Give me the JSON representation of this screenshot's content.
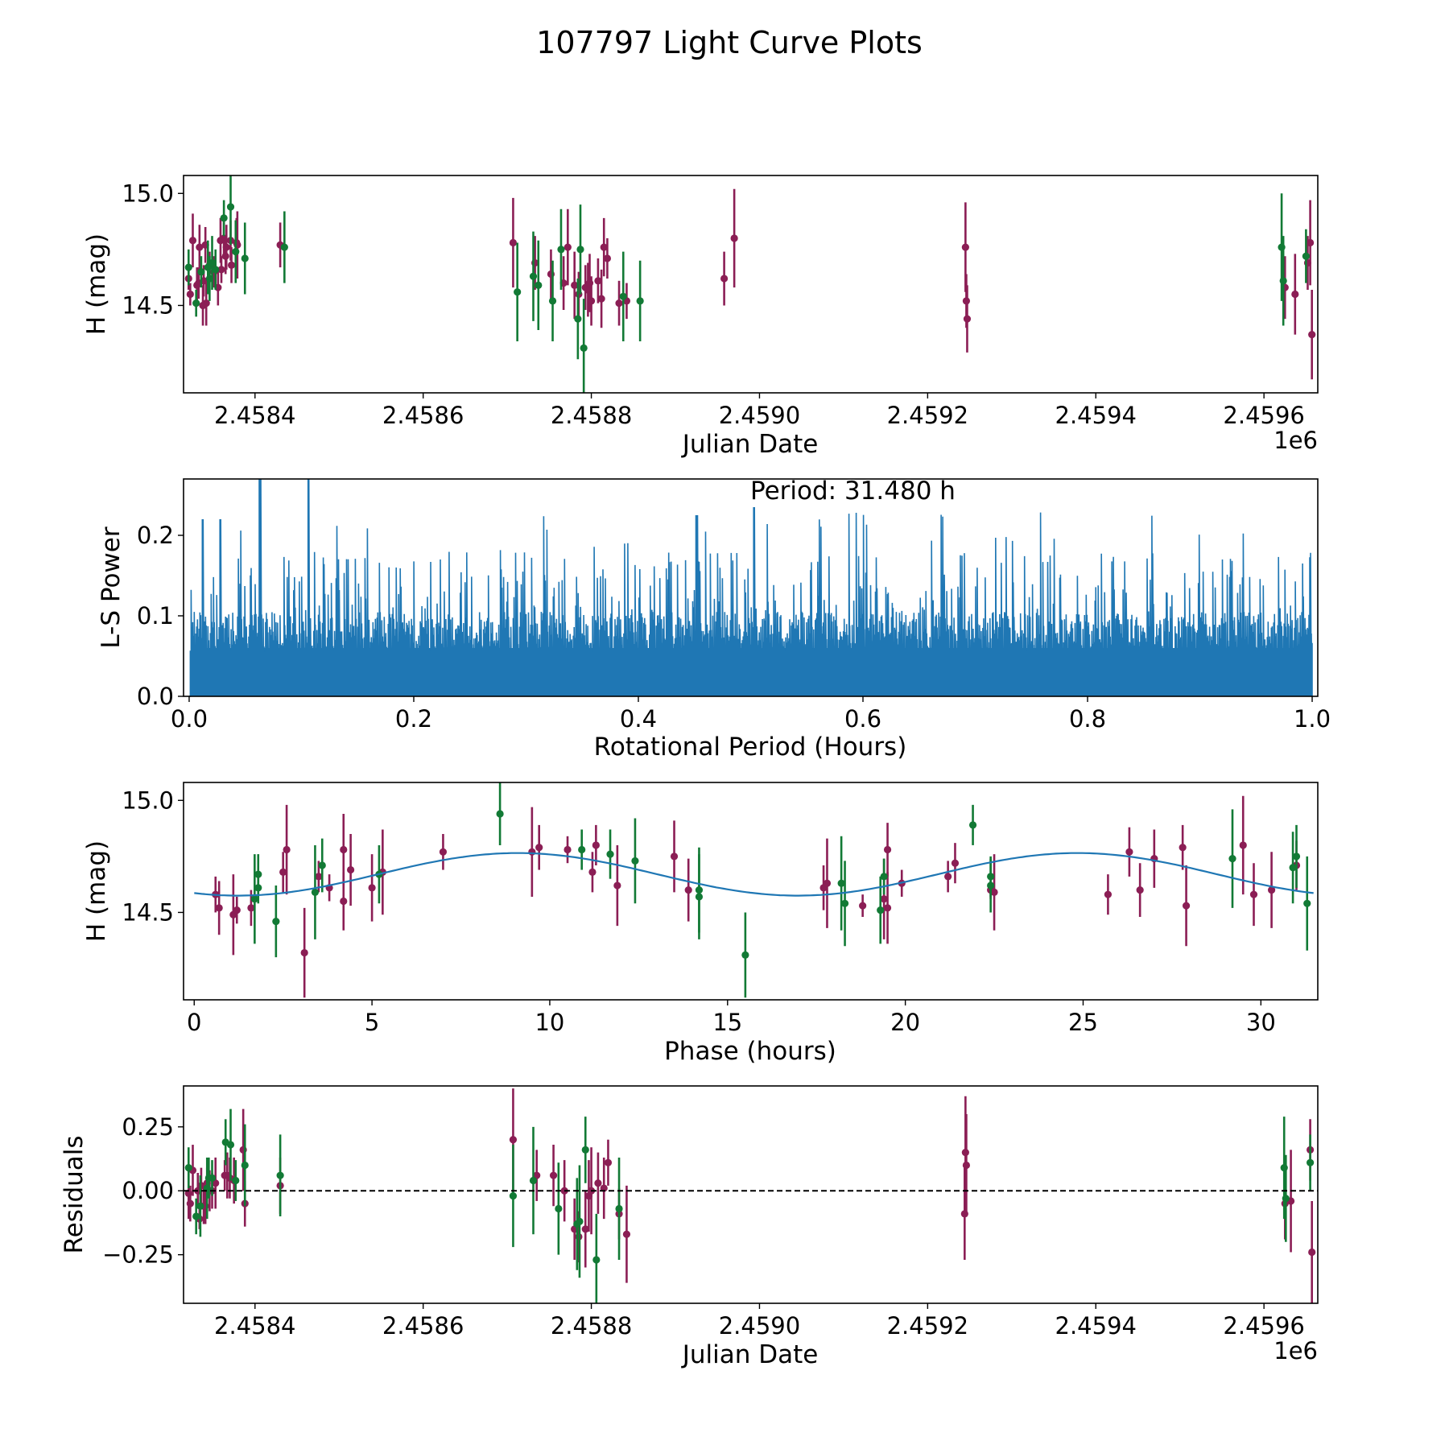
{
  "figure_title": "107797 Light Curve Plots",
  "colors": {
    "filter_a": "#8b1e55",
    "filter_b": "#127a35",
    "periodogram": "#1f77b4",
    "model": "#1f77b4",
    "zero_line": "#000000"
  },
  "chart_data": [
    {
      "type": "scatter",
      "panel": "light-curve",
      "title": "",
      "xlabel": "Julian Date",
      "ylabel": "H (mag)",
      "x_offset_label": "1e6",
      "xlim": [
        2458315,
        2459664
      ],
      "ylim": [
        14.11,
        15.08
      ],
      "xticks": [
        2458400,
        2458600,
        2458800,
        2459000,
        2459200,
        2459400,
        2459600
      ],
      "xtick_labels": [
        "2.4584",
        "2.4586",
        "2.4588",
        "2.4590",
        "2.4592",
        "2.4594",
        "2.4596"
      ],
      "yticks": [
        14.5,
        15.0
      ],
      "ytick_labels": [
        "14.5",
        "15.0"
      ],
      "series": [
        {
          "name": "filter-magenta",
          "color": "#8b1e55",
          "x": [
            2458321,
            2458323,
            2458326,
            2458331,
            2458333,
            2458334,
            2458338,
            2458339,
            2458341,
            2458342,
            2458346,
            2458351,
            2458356,
            2458359,
            2458360,
            2458363,
            2458365,
            2458366,
            2458371,
            2458372,
            2458378,
            2458379,
            2458430,
            2458707,
            2458733,
            2458752,
            2458767,
            2458772,
            2458780,
            2458785,
            2458793,
            2458796,
            2458798,
            2458800,
            2458808,
            2458812,
            2458815,
            2458819,
            2458833,
            2458842,
            2458958,
            2458970,
            2459245,
            2459246,
            2459247,
            2459625,
            2459637,
            2459652,
            2459655,
            2459657
          ],
          "y": [
            14.62,
            14.55,
            14.79,
            14.59,
            14.6,
            14.76,
            14.5,
            14.61,
            14.77,
            14.51,
            14.68,
            14.65,
            14.58,
            14.79,
            14.66,
            14.8,
            14.72,
            14.76,
            14.79,
            14.68,
            14.78,
            14.77,
            14.77,
            14.78,
            14.69,
            14.64,
            14.6,
            14.76,
            14.59,
            14.55,
            14.58,
            14.57,
            14.6,
            14.52,
            14.61,
            14.53,
            14.76,
            14.71,
            14.51,
            14.52,
            14.62,
            14.8,
            14.76,
            14.52,
            14.44,
            14.58,
            14.55,
            14.69,
            14.78,
            14.37
          ],
          "err": [
            0.05,
            0.05,
            0.12,
            0.08,
            0.07,
            0.1,
            0.09,
            0.07,
            0.08,
            0.1,
            0.06,
            0.07,
            0.08,
            0.1,
            0.06,
            0.09,
            0.08,
            0.1,
            0.09,
            0.08,
            0.11,
            0.15,
            0.1,
            0.2,
            0.12,
            0.11,
            0.12,
            0.17,
            0.15,
            0.1,
            0.1,
            0.12,
            0.13,
            0.11,
            0.1,
            0.13,
            0.13,
            0.09,
            0.1,
            0.08,
            0.12,
            0.22,
            0.2,
            0.12,
            0.15,
            0.14,
            0.18,
            0.12,
            0.19,
            0.2
          ],
          "note": "values estimated from pixel positions"
        },
        {
          "name": "filter-green",
          "color": "#127a35",
          "x": [
            2458321,
            2458330,
            2458336,
            2458344,
            2458346,
            2458349,
            2458353,
            2458363,
            2458371,
            2458377,
            2458388,
            2458435,
            2458712,
            2458731,
            2458737,
            2458754,
            2458764,
            2458784,
            2458787,
            2458791,
            2458838,
            2458858,
            2459621,
            2459623,
            2459650
          ],
          "y": [
            14.67,
            14.51,
            14.65,
            14.67,
            14.62,
            14.69,
            14.66,
            14.89,
            14.94,
            14.74,
            14.71,
            14.76,
            14.56,
            14.63,
            14.59,
            14.52,
            14.75,
            14.44,
            14.75,
            14.31,
            14.54,
            14.52,
            14.76,
            14.61,
            14.72
          ],
          "err": [
            0.08,
            0.06,
            0.07,
            0.12,
            0.1,
            0.12,
            0.09,
            0.08,
            0.17,
            0.14,
            0.16,
            0.16,
            0.22,
            0.2,
            0.2,
            0.18,
            0.18,
            0.18,
            0.2,
            0.22,
            0.2,
            0.18,
            0.24,
            0.2,
            0.12
          ],
          "note": "values estimated from pixel positions"
        }
      ]
    },
    {
      "type": "line",
      "panel": "periodogram",
      "xlabel": "Rotational Period (Hours)",
      "ylabel": "L-S Power",
      "xlim": [
        -0.005,
        1.005
      ],
      "ylim": [
        0.0,
        0.27
      ],
      "xticks": [
        0.0,
        0.2,
        0.4,
        0.6,
        0.8,
        1.0
      ],
      "xtick_labels": [
        "0.0",
        "0.2",
        "0.4",
        "0.6",
        "0.8",
        "1.0"
      ],
      "yticks": [
        0.0,
        0.1,
        0.2
      ],
      "ytick_labels": [
        "0.0",
        "0.1",
        "0.2"
      ],
      "annotation": "Period: 31.480 h",
      "series": [
        {
          "name": "ls-power",
          "color": "#1f77b4",
          "description": "dense periodogram, baseline envelope ~0.06-0.12 with frequent spikes to ~0.15-0.24",
          "peaks": [
            [
              0.063,
              0.27
            ],
            [
              0.106,
              0.27
            ],
            [
              0.012,
              0.22
            ],
            [
              0.028,
              0.22
            ],
            [
              0.503,
              0.235
            ],
            [
              0.452,
              0.225
            ]
          ]
        }
      ]
    },
    {
      "type": "scatter",
      "panel": "phased-light-curve",
      "xlabel": "Phase (hours)",
      "ylabel": "H (mag)",
      "xlim": [
        -0.3,
        31.6
      ],
      "ylim": [
        14.11,
        15.08
      ],
      "xticks": [
        0,
        5,
        10,
        15,
        20,
        25,
        30
      ],
      "xtick_labels": [
        "0",
        "5",
        "10",
        "15",
        "20",
        "25",
        "30"
      ],
      "yticks": [
        14.5,
        15.0
      ],
      "ytick_labels": [
        "14.5",
        "15.0"
      ],
      "model": {
        "type": "sinusoid",
        "period_hours": 31.48,
        "mean": 14.67,
        "amplitude": 0.095,
        "peak_phase": 9.1
      },
      "series": [
        {
          "name": "filter-magenta",
          "color": "#8b1e55",
          "x": [
            0.6,
            0.7,
            1.1,
            1.2,
            1.6,
            2.5,
            2.6,
            3.1,
            3.5,
            3.8,
            4.2,
            4.2,
            4.4,
            5.0,
            5.3,
            7.0,
            9.5,
            9.7,
            10.5,
            11.2,
            11.3,
            11.9,
            13.5,
            13.9,
            17.7,
            17.8,
            18.8,
            19.4,
            19.5,
            19.5,
            19.9,
            21.2,
            21.4,
            22.4,
            22.5,
            25.7,
            26.3,
            26.6,
            27.0,
            27.8,
            27.9,
            29.5,
            29.8,
            30.3,
            31.0
          ],
          "y": [
            14.58,
            14.52,
            14.49,
            14.51,
            14.52,
            14.68,
            14.78,
            14.32,
            14.66,
            14.61,
            14.78,
            14.55,
            14.69,
            14.61,
            14.68,
            14.77,
            14.77,
            14.79,
            14.78,
            14.68,
            14.8,
            14.62,
            14.75,
            14.6,
            14.61,
            14.63,
            14.53,
            14.56,
            14.78,
            14.52,
            14.63,
            14.66,
            14.72,
            14.6,
            14.59,
            14.58,
            14.77,
            14.6,
            14.74,
            14.79,
            14.53,
            14.8,
            14.58,
            14.6,
            14.71
          ],
          "err": [
            0.08,
            0.12,
            0.18,
            0.06,
            0.08,
            0.09,
            0.2,
            0.2,
            0.07,
            0.06,
            0.16,
            0.13,
            0.16,
            0.15,
            0.19,
            0.08,
            0.2,
            0.1,
            0.06,
            0.09,
            0.09,
            0.18,
            0.16,
            0.14,
            0.1,
            0.2,
            0.05,
            0.18,
            0.12,
            0.16,
            0.06,
            0.07,
            0.09,
            0.04,
            0.17,
            0.09,
            0.11,
            0.12,
            0.13,
            0.1,
            0.18,
            0.22,
            0.14,
            0.17,
            0.11
          ],
          "note": "values estimated from pixel positions"
        },
        {
          "name": "filter-green",
          "color": "#127a35",
          "x": [
            1.7,
            1.8,
            1.8,
            2.3,
            3.4,
            3.6,
            5.2,
            8.6,
            10.9,
            11.7,
            12.4,
            14.2,
            14.2,
            15.5,
            18.2,
            18.3,
            19.3,
            19.4,
            21.9,
            22.4,
            22.4,
            29.2,
            30.9,
            31.0,
            31.3
          ],
          "y": [
            14.56,
            14.67,
            14.61,
            14.46,
            14.59,
            14.71,
            14.67,
            14.94,
            14.78,
            14.76,
            14.73,
            14.6,
            14.57,
            14.31,
            14.63,
            14.54,
            14.51,
            14.66,
            14.89,
            14.66,
            14.62,
            14.74,
            14.7,
            14.75,
            14.54
          ],
          "err": [
            0.2,
            0.09,
            0.07,
            0.16,
            0.21,
            0.12,
            0.13,
            0.14,
            0.09,
            0.11,
            0.19,
            0.19,
            0.19,
            0.19,
            0.21,
            0.19,
            0.15,
            0.08,
            0.09,
            0.09,
            0.12,
            0.22,
            0.16,
            0.14,
            0.21
          ],
          "note": "values estimated from pixel positions"
        }
      ]
    },
    {
      "type": "scatter",
      "panel": "residuals",
      "xlabel": "Julian Date",
      "ylabel": "Residuals",
      "x_offset_label": "1e6",
      "xlim": [
        2458315,
        2459664
      ],
      "ylim": [
        -0.44,
        0.41
      ],
      "xticks": [
        2458400,
        2458600,
        2458800,
        2459000,
        2459200,
        2459400,
        2459600
      ],
      "xtick_labels": [
        "2.4584",
        "2.4586",
        "2.4588",
        "2.4590",
        "2.4592",
        "2.4594",
        "2.4596"
      ],
      "yticks": [
        -0.25,
        0.0,
        0.25
      ],
      "ytick_labels": [
        "−0.25",
        "0.00",
        "0.25"
      ],
      "zero_line": {
        "y": 0.0,
        "style": "dashed"
      },
      "series": [
        {
          "name": "filter-magenta",
          "color": "#8b1e55",
          "x": [
            2458321,
            2458323,
            2458326,
            2458332,
            2458334,
            2458336,
            2458339,
            2458341,
            2458343,
            2458346,
            2458349,
            2458353,
            2458364,
            2458367,
            2458370,
            2458375,
            2458386,
            2458388,
            2458430,
            2458707,
            2458735,
            2458755,
            2458768,
            2458780,
            2458785,
            2458793,
            2458797,
            2458800,
            2458808,
            2458815,
            2458820,
            2458833,
            2458842,
            2459244,
            2459245,
            2459246,
            2459625,
            2459632,
            2459655,
            2459657
          ],
          "y": [
            -0.01,
            -0.05,
            0.08,
            0.0,
            -0.11,
            0.02,
            -0.06,
            -0.06,
            0.03,
            0.0,
            0.0,
            0.03,
            0.06,
            0.06,
            0.05,
            0.04,
            0.16,
            -0.05,
            0.02,
            0.2,
            0.06,
            0.06,
            0.0,
            -0.15,
            -0.18,
            -0.15,
            -0.02,
            0.0,
            0.03,
            0.01,
            0.11,
            -0.09,
            -0.17,
            -0.09,
            0.15,
            0.1,
            -0.05,
            -0.04,
            0.16,
            -0.24
          ],
          "err": [
            0.1,
            0.07,
            0.1,
            0.07,
            0.04,
            0.07,
            0.07,
            0.07,
            0.06,
            0.08,
            0.07,
            0.1,
            0.06,
            0.09,
            0.08,
            0.09,
            0.16,
            0.09,
            0.11,
            0.2,
            0.1,
            0.12,
            0.12,
            0.12,
            0.1,
            0.15,
            0.14,
            0.17,
            0.12,
            0.12,
            0.09,
            0.1,
            0.19,
            0.18,
            0.22,
            0.2,
            0.14,
            0.2,
            0.12,
            0.2
          ],
          "note": "values estimated from pixel positions"
        },
        {
          "name": "filter-green",
          "color": "#127a35",
          "x": [
            2458321,
            2458330,
            2458335,
            2458343,
            2458345,
            2458349,
            2458365,
            2458371,
            2458377,
            2458388,
            2458430,
            2458707,
            2458731,
            2458761,
            2458783,
            2458786,
            2458793,
            2458806,
            2458833,
            2459624,
            2459626,
            2459655
          ],
          "y": [
            0.09,
            -0.1,
            -0.06,
            0.01,
            0.05,
            0.05,
            0.19,
            0.18,
            0.04,
            0.1,
            0.06,
            -0.02,
            0.04,
            -0.07,
            -0.13,
            -0.12,
            0.16,
            -0.27,
            -0.07,
            0.09,
            -0.03,
            0.11
          ],
          "err": [
            0.08,
            0.07,
            0.12,
            0.12,
            0.08,
            0.07,
            0.09,
            0.14,
            0.08,
            0.16,
            0.16,
            0.2,
            0.21,
            0.18,
            0.18,
            0.22,
            0.13,
            0.18,
            0.2,
            0.2,
            0.17,
            0.11
          ],
          "note": "values estimated from pixel positions"
        }
      ]
    }
  ]
}
